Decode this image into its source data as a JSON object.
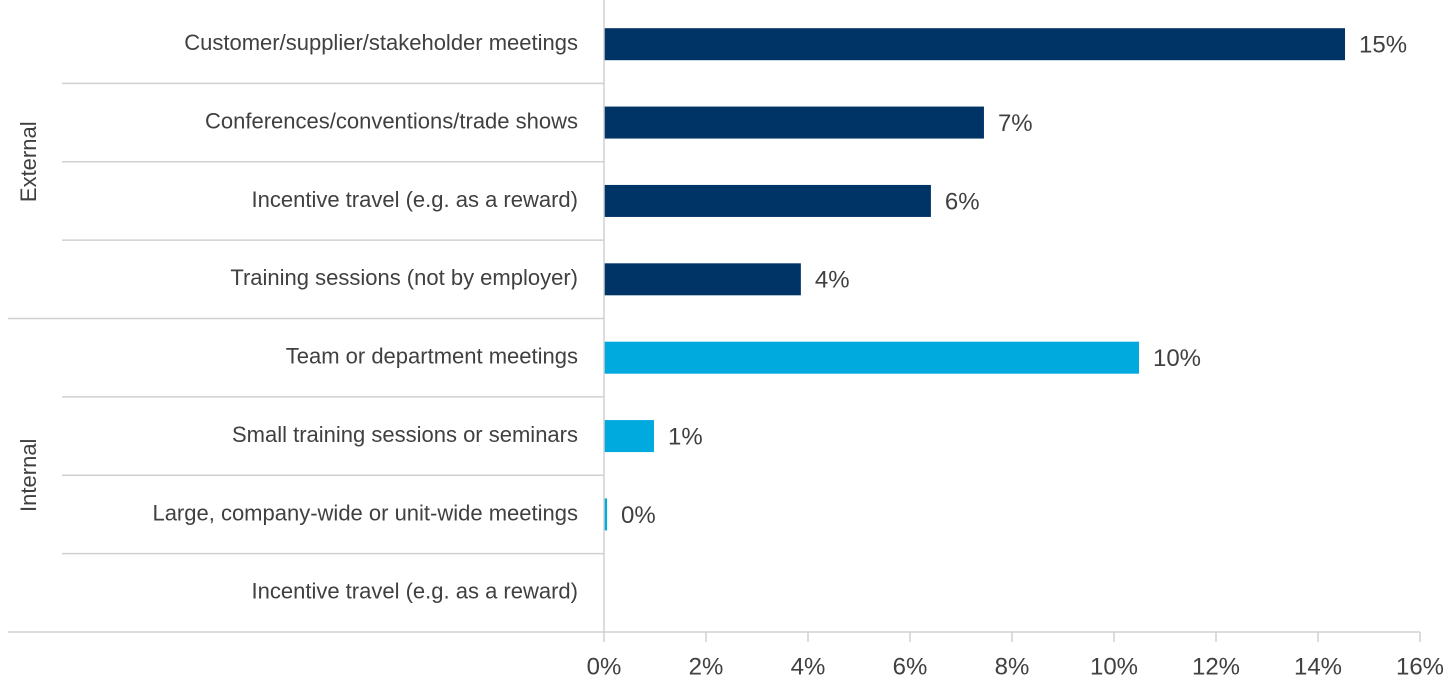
{
  "chart_data": {
    "type": "bar",
    "orientation": "horizontal",
    "groups": [
      {
        "name": "External",
        "color": "#003366",
        "categories": [
          "Customer/supplier/stakeholder meetings",
          "Conferences/conventions/trade shows",
          "Incentive travel (e.g. as a reward)",
          "Training sessions (not by employer)"
        ],
        "values": [
          14.53,
          7.45,
          6.41,
          3.86
        ],
        "value_labels": [
          "15%",
          "7%",
          "6%",
          "4%"
        ]
      },
      {
        "name": "Internal",
        "color": "#00aadf",
        "categories": [
          "Team or department meetings",
          "Small training sessions or seminars",
          "Large, company-wide or unit-wide meetings",
          "Incentive travel (e.g. as a reward)"
        ],
        "values": [
          10.49,
          0.98,
          0.06,
          null
        ],
        "value_labels": [
          "10%",
          "1%",
          "0%",
          null
        ]
      }
    ],
    "xlim": [
      0,
      16
    ],
    "xticks": [
      {
        "value": 0,
        "label": "0%"
      },
      {
        "value": 2,
        "label": "2%"
      },
      {
        "value": 4,
        "label": "4%"
      },
      {
        "value": 6,
        "label": "6%"
      },
      {
        "value": 8,
        "label": "8%"
      },
      {
        "value": 10,
        "label": "10%"
      },
      {
        "value": 12,
        "label": "12%"
      },
      {
        "value": 14,
        "label": "14%"
      },
      {
        "value": 16,
        "label": "16%"
      }
    ]
  }
}
